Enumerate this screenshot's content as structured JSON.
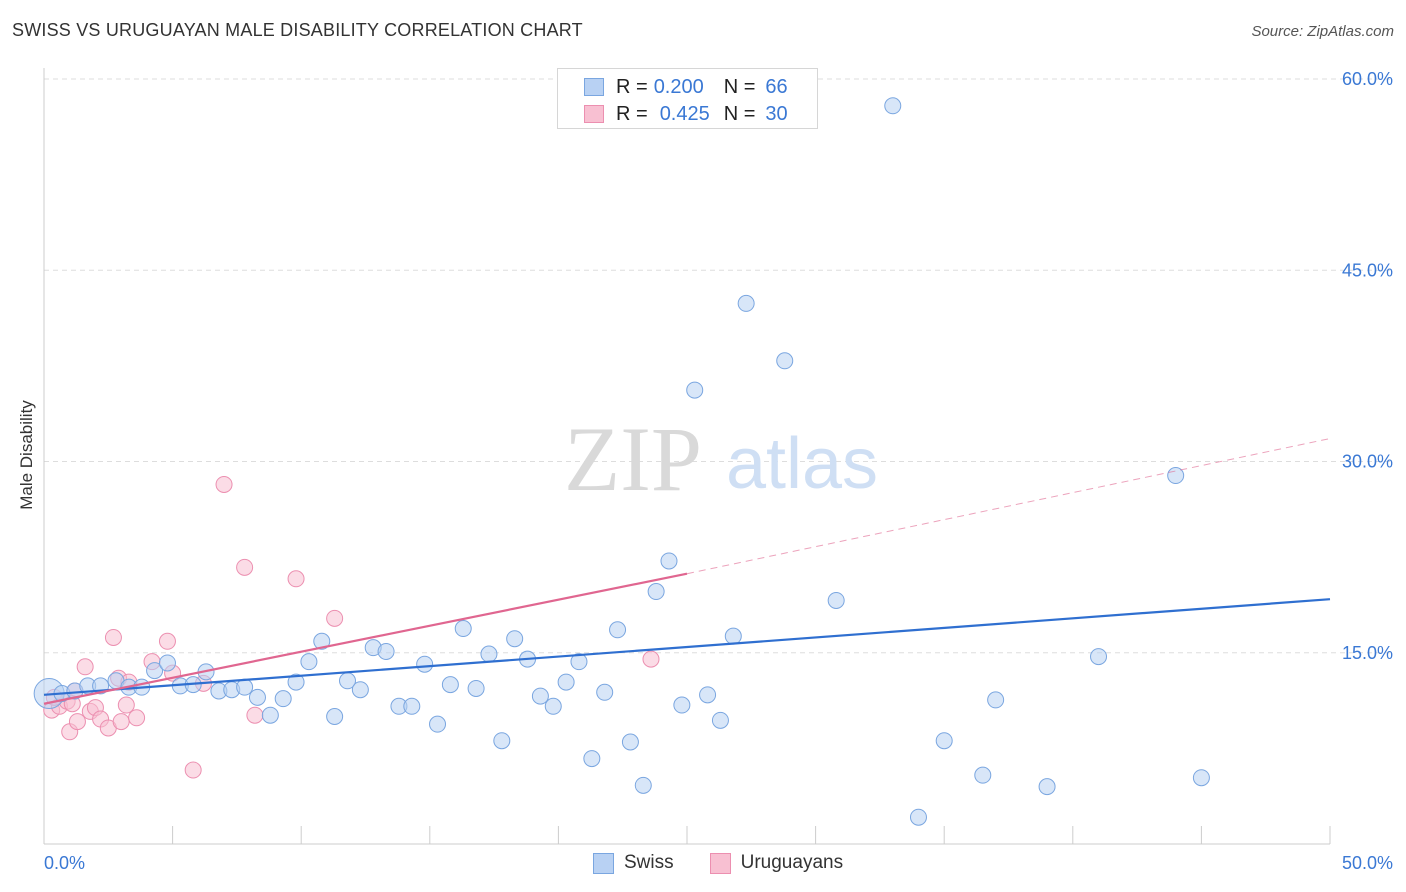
{
  "header": {
    "title": "SWISS VS URUGUAYAN MALE DISABILITY CORRELATION CHART",
    "source": "Source: ZipAtlas.com"
  },
  "legend": {
    "rows": [
      {
        "r_key": "R =",
        "r_value": "0.200",
        "n_key": "N =",
        "n_value": "66"
      },
      {
        "r_key": "R =",
        "r_value": "0.425",
        "n_key": "N =",
        "n_value": "30"
      }
    ],
    "bottom": [
      "Swiss",
      "Uruguayans"
    ]
  },
  "watermark": {
    "zip": "ZIP",
    "atlas": "atlas"
  },
  "colors": {
    "swiss_fill": "#b8d1f3",
    "swiss_stroke": "#7aa6e0",
    "swiss_line": "#2f6fd0",
    "uru_fill": "#f8c0d2",
    "uru_stroke": "#ec8fb0",
    "uru_line": "#e06690",
    "axis_text": "#3a78d4",
    "grid": "#dddddd"
  },
  "chart_data": {
    "type": "scatter",
    "title": "SWISS VS URUGUAYAN MALE DISABILITY CORRELATION CHART",
    "xlabel": "",
    "ylabel": "Male Disability",
    "xlim": [
      0,
      50
    ],
    "ylim": [
      0,
      60
    ],
    "x_tick_labels": [
      "0.0%",
      "50.0%"
    ],
    "y_ticks": [
      15,
      30,
      45,
      60
    ],
    "y_tick_labels": [
      "15.0%",
      "30.0%",
      "45.0%",
      "60.0%"
    ],
    "grid": "horizontal dashed",
    "legend_position": "top-center",
    "series": [
      {
        "name": "Swiss",
        "R": 0.2,
        "N": 66,
        "trend": {
          "x0": 0,
          "y0": 11.7,
          "x1": 50,
          "y1": 19.2
        },
        "points": [
          [
            0.2,
            11.8
          ],
          [
            0.7,
            11.8
          ],
          [
            1.2,
            12.0
          ],
          [
            1.7,
            12.4
          ],
          [
            2.2,
            12.4
          ],
          [
            2.8,
            12.8
          ],
          [
            3.3,
            12.3
          ],
          [
            3.8,
            12.3
          ],
          [
            4.3,
            13.6
          ],
          [
            4.8,
            14.2
          ],
          [
            5.3,
            12.4
          ],
          [
            5.8,
            12.5
          ],
          [
            6.3,
            13.5
          ],
          [
            6.8,
            12.0
          ],
          [
            7.3,
            12.1
          ],
          [
            7.8,
            12.3
          ],
          [
            8.3,
            11.5
          ],
          [
            8.8,
            10.1
          ],
          [
            9.3,
            11.4
          ],
          [
            9.8,
            12.7
          ],
          [
            10.3,
            14.3
          ],
          [
            10.8,
            15.9
          ],
          [
            11.3,
            10.0
          ],
          [
            11.8,
            12.8
          ],
          [
            12.3,
            12.1
          ],
          [
            12.8,
            15.4
          ],
          [
            13.3,
            15.1
          ],
          [
            13.8,
            10.8
          ],
          [
            14.3,
            10.8
          ],
          [
            14.8,
            14.1
          ],
          [
            15.3,
            9.4
          ],
          [
            15.8,
            12.5
          ],
          [
            16.3,
            16.9
          ],
          [
            16.8,
            12.2
          ],
          [
            17.3,
            14.9
          ],
          [
            17.8,
            8.1
          ],
          [
            18.3,
            16.1
          ],
          [
            18.8,
            14.5
          ],
          [
            19.3,
            11.6
          ],
          [
            19.8,
            10.8
          ],
          [
            20.3,
            12.7
          ],
          [
            20.8,
            14.3
          ],
          [
            21.3,
            6.7
          ],
          [
            21.8,
            11.9
          ],
          [
            22.3,
            16.8
          ],
          [
            22.8,
            8.0
          ],
          [
            23.3,
            4.6
          ],
          [
            23.8,
            19.8
          ],
          [
            24.3,
            22.2
          ],
          [
            24.8,
            10.9
          ],
          [
            25.3,
            35.6
          ],
          [
            25.8,
            11.7
          ],
          [
            26.3,
            9.7
          ],
          [
            26.8,
            16.3
          ],
          [
            27.3,
            42.4
          ],
          [
            28.8,
            37.9
          ],
          [
            30.8,
            19.1
          ],
          [
            33.0,
            57.9
          ],
          [
            34.0,
            2.1
          ],
          [
            35.0,
            8.1
          ],
          [
            36.5,
            5.4
          ],
          [
            37.0,
            11.3
          ],
          [
            39.0,
            4.5
          ],
          [
            41.0,
            14.7
          ],
          [
            44.0,
            28.9
          ],
          [
            45.0,
            5.2
          ]
        ]
      },
      {
        "name": "Uruguayans",
        "R": 0.425,
        "N": 30,
        "trend_solid": {
          "x0": 0,
          "y0": 11.0,
          "x1": 25.0,
          "y1": 21.2
        },
        "trend_dashed": {
          "x0": 25.0,
          "y0": 21.2,
          "x1": 50,
          "y1": 31.8
        },
        "points": [
          [
            0.3,
            10.5
          ],
          [
            0.6,
            10.8
          ],
          [
            0.9,
            11.2
          ],
          [
            1.0,
            8.8
          ],
          [
            1.2,
            12.0
          ],
          [
            1.3,
            9.6
          ],
          [
            1.6,
            13.9
          ],
          [
            1.8,
            10.4
          ],
          [
            2.0,
            10.7
          ],
          [
            2.2,
            9.8
          ],
          [
            2.5,
            9.1
          ],
          [
            2.7,
            16.2
          ],
          [
            2.9,
            13.0
          ],
          [
            3.0,
            9.6
          ],
          [
            3.2,
            10.9
          ],
          [
            3.3,
            12.7
          ],
          [
            3.6,
            9.9
          ],
          [
            4.2,
            14.3
          ],
          [
            4.8,
            15.9
          ],
          [
            5.8,
            5.8
          ],
          [
            6.2,
            12.6
          ],
          [
            7.0,
            28.2
          ],
          [
            7.8,
            21.7
          ],
          [
            8.2,
            10.1
          ],
          [
            9.8,
            20.8
          ],
          [
            11.3,
            17.7
          ],
          [
            1.1,
            11.0
          ],
          [
            0.4,
            11.5
          ],
          [
            5.0,
            13.4
          ],
          [
            23.6,
            14.5
          ]
        ]
      }
    ]
  }
}
